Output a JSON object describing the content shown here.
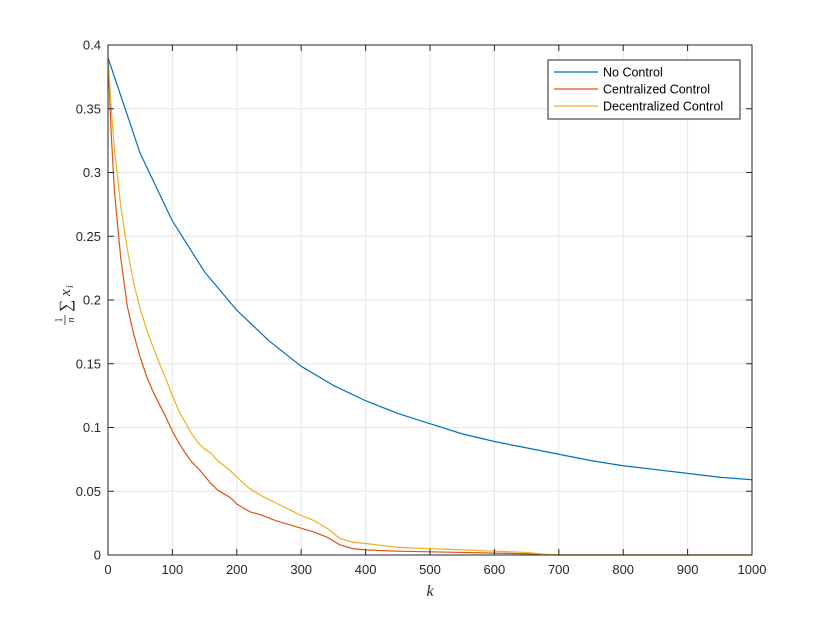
{
  "chart_data": {
    "type": "line",
    "title": "",
    "xlabel": "k",
    "ylabel_parts": {
      "frac_num": "1",
      "frac_den": "n",
      "sum": "∑",
      "var": "x",
      "sub": "i"
    },
    "xlim": [
      0,
      1000
    ],
    "ylim": [
      0,
      0.4
    ],
    "xticks": [
      0,
      100,
      200,
      300,
      400,
      500,
      600,
      700,
      800,
      900,
      1000
    ],
    "yticks": [
      0,
      0.05,
      0.1,
      0.15,
      0.2,
      0.25,
      0.3,
      0.35,
      0.4
    ],
    "ytick_labels": [
      "0",
      "0.05",
      "0.1",
      "0.15",
      "0.2",
      "0.25",
      "0.3",
      "0.35",
      "0.4"
    ],
    "grid": true,
    "legend_position": "top-right",
    "series": [
      {
        "name": "No Control",
        "color": "#0072BD",
        "x": [
          0,
          20,
          50,
          100,
          150,
          200,
          250,
          300,
          350,
          400,
          450,
          500,
          550,
          600,
          650,
          700,
          750,
          800,
          850,
          900,
          950,
          1000
        ],
        "y": [
          0.39,
          0.36,
          0.315,
          0.262,
          0.222,
          0.192,
          0.168,
          0.148,
          0.133,
          0.121,
          0.111,
          0.103,
          0.095,
          0.089,
          0.084,
          0.079,
          0.074,
          0.07,
          0.067,
          0.064,
          0.061,
          0.059
        ]
      },
      {
        "name": "Centralized Control",
        "color": "#D95319",
        "x": [
          0,
          5,
          10,
          20,
          30,
          40,
          50,
          60,
          70,
          80,
          90,
          100,
          110,
          120,
          130,
          140,
          150,
          160,
          170,
          180,
          190,
          200,
          220,
          240,
          260,
          280,
          300,
          320,
          340,
          360,
          380,
          400,
          450,
          500,
          550,
          600,
          650,
          700,
          800,
          900,
          1000
        ],
        "y": [
          0.39,
          0.33,
          0.285,
          0.232,
          0.195,
          0.173,
          0.155,
          0.14,
          0.128,
          0.118,
          0.108,
          0.097,
          0.088,
          0.08,
          0.073,
          0.068,
          0.062,
          0.056,
          0.051,
          0.048,
          0.045,
          0.04,
          0.034,
          0.031,
          0.027,
          0.024,
          0.021,
          0.018,
          0.014,
          0.008,
          0.005,
          0.004,
          0.003,
          0.0025,
          0.002,
          0.0015,
          0.001,
          0.0,
          0.0,
          0.0,
          0.0
        ]
      },
      {
        "name": "Decentralized Control",
        "color": "#EDB120",
        "x": [
          0,
          5,
          10,
          20,
          30,
          40,
          50,
          60,
          70,
          80,
          90,
          100,
          110,
          120,
          130,
          140,
          150,
          160,
          170,
          180,
          190,
          200,
          220,
          240,
          260,
          280,
          300,
          320,
          340,
          360,
          380,
          400,
          450,
          500,
          550,
          600,
          650,
          680,
          700,
          800,
          900,
          1000
        ],
        "y": [
          0.39,
          0.35,
          0.318,
          0.273,
          0.24,
          0.213,
          0.193,
          0.177,
          0.163,
          0.15,
          0.138,
          0.125,
          0.113,
          0.104,
          0.095,
          0.088,
          0.083,
          0.08,
          0.074,
          0.07,
          0.066,
          0.061,
          0.052,
          0.046,
          0.041,
          0.036,
          0.031,
          0.027,
          0.021,
          0.013,
          0.01,
          0.009,
          0.006,
          0.005,
          0.004,
          0.003,
          0.002,
          0.0005,
          0.0,
          0.0,
          0.0,
          0.0
        ]
      }
    ]
  }
}
